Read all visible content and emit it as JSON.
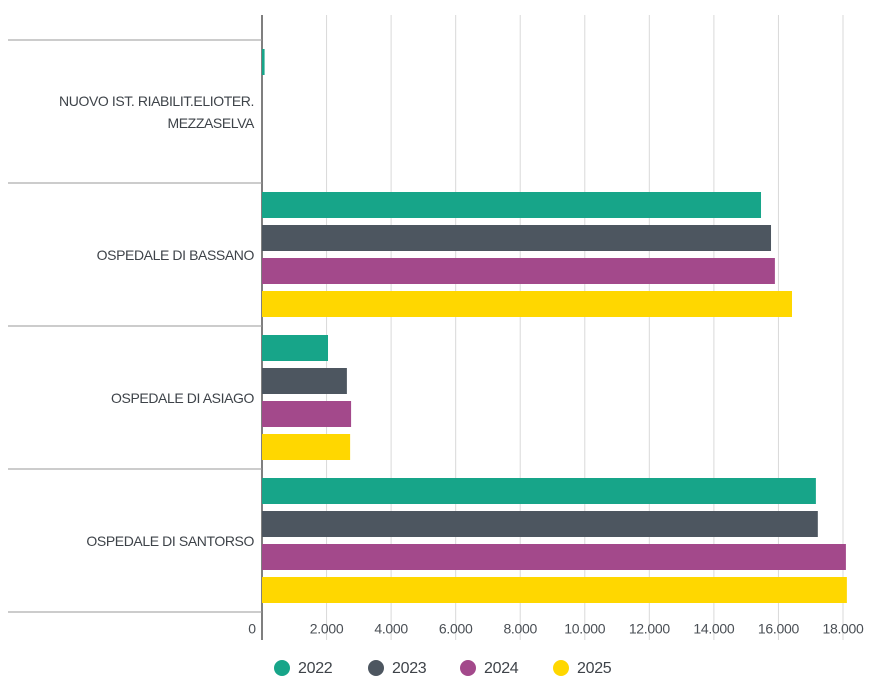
{
  "chart_data": {
    "type": "bar",
    "orientation": "horizontal",
    "categories": [
      "NUOVO IST. RIABILIT.ELIOTER. MEZZASELVA",
      "OSPEDALE DI BASSANO",
      "OSPEDALE DI ASIAGO",
      "OSPEDALE DI SANTORSO"
    ],
    "series": [
      {
        "name": "2022",
        "color": "#17a589",
        "values": [
          80,
          15460,
          2045,
          17160
        ]
      },
      {
        "name": "2023",
        "color": "#4d5660",
        "values": [
          0,
          15770,
          2630,
          17220
        ]
      },
      {
        "name": "2024",
        "color": "#a3498b",
        "values": [
          0,
          15890,
          2760,
          18090
        ]
      },
      {
        "name": "2025",
        "color": "#ffd700",
        "values": [
          0,
          16420,
          2730,
          18120
        ]
      }
    ],
    "xlim": [
      0,
      18800
    ],
    "xticks": [
      0,
      {
        "value": 2000,
        "label": "2.000"
      },
      {
        "value": 4000,
        "label": "4.000"
      },
      {
        "value": 6000,
        "label": "6.000"
      },
      {
        "value": 8000,
        "label": "8.000"
      },
      {
        "value": 10000,
        "label": "10.000"
      },
      {
        "value": 12000,
        "label": "12.000"
      },
      {
        "value": 14000,
        "label": "14.000"
      },
      {
        "value": 16000,
        "label": "16.000"
      },
      {
        "value": 18000,
        "label": "18.000"
      }
    ],
    "grid": true,
    "legend": "bottom"
  }
}
